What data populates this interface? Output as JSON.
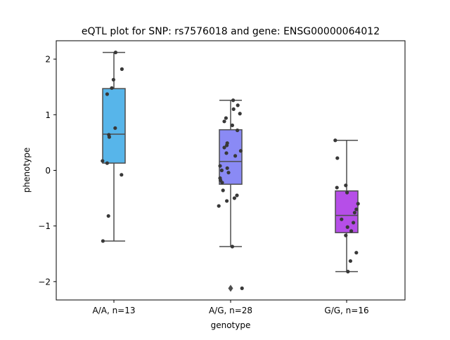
{
  "chart_data": {
    "type": "box",
    "title": "eQTL plot for SNP: rs7576018 and gene: ENSG00000064012",
    "xlabel": "genotype",
    "ylabel": "phenotype",
    "ylim": [
      -2.33,
      2.33
    ],
    "yticks": [
      -2,
      -1,
      0,
      1,
      2
    ],
    "ytick_labels": [
      "−2",
      "−1",
      "0",
      "1",
      "2"
    ],
    "grid": false,
    "categories": [
      "A/A, n=13",
      "A/G, n=28",
      "G/G, n=16"
    ],
    "colors": [
      "#57b5ea",
      "#8a8af5",
      "#b64ee8"
    ],
    "boxes": [
      {
        "category": "A/A, n=13",
        "whisker_low": -1.27,
        "q1": 0.13,
        "median": 0.65,
        "q3": 1.47,
        "whisker_high": 2.12,
        "outliers": []
      },
      {
        "category": "A/G, n=28",
        "whisker_low": -1.37,
        "q1": -0.25,
        "median": 0.16,
        "q3": 0.73,
        "whisker_high": 1.26,
        "outliers": [
          -2.12
        ]
      },
      {
        "category": "G/G, n=16",
        "whisker_low": -1.82,
        "q1": -1.12,
        "median": -0.81,
        "q3": -0.37,
        "whisker_high": 0.54,
        "outliers": []
      }
    ],
    "points": [
      [
        {
          "dx": 0.04,
          "y": 2.12
        },
        {
          "dx": 0.19,
          "y": 1.82
        },
        {
          "dx": -0.01,
          "y": 1.63
        },
        {
          "dx": -0.05,
          "y": 1.48
        },
        {
          "dx": -0.16,
          "y": 1.37
        },
        {
          "dx": 0.03,
          "y": 0.76
        },
        {
          "dx": -0.12,
          "y": 0.64
        },
        {
          "dx": -0.11,
          "y": 0.6
        },
        {
          "dx": -0.27,
          "y": 0.17
        },
        {
          "dx": -0.16,
          "y": 0.13
        },
        {
          "dx": 0.18,
          "y": -0.08
        },
        {
          "dx": -0.13,
          "y": -0.82
        },
        {
          "dx": -0.26,
          "y": -1.27
        }
      ],
      [
        {
          "dx": 0.06,
          "y": 1.26
        },
        {
          "dx": 0.17,
          "y": 1.17
        },
        {
          "dx": 0.07,
          "y": 1.1
        },
        {
          "dx": 0.22,
          "y": 1.02
        },
        {
          "dx": -0.11,
          "y": 0.94
        },
        {
          "dx": -0.15,
          "y": 0.88
        },
        {
          "dx": 0.04,
          "y": 0.81
        },
        {
          "dx": 0.16,
          "y": 0.72
        },
        {
          "dx": -0.08,
          "y": 0.49
        },
        {
          "dx": -0.09,
          "y": 0.45
        },
        {
          "dx": -0.15,
          "y": 0.41
        },
        {
          "dx": 0.24,
          "y": 0.35
        },
        {
          "dx": -0.1,
          "y": 0.31
        },
        {
          "dx": 0.11,
          "y": 0.26
        },
        {
          "dx": -0.25,
          "y": 0.08
        },
        {
          "dx": -0.08,
          "y": 0.04
        },
        {
          "dx": -0.21,
          "y": 0.0
        },
        {
          "dx": -0.05,
          "y": -0.04
        },
        {
          "dx": -0.25,
          "y": -0.14
        },
        {
          "dx": -0.24,
          "y": -0.18
        },
        {
          "dx": -0.2,
          "y": -0.22
        },
        {
          "dx": -0.18,
          "y": -0.36
        },
        {
          "dx": 0.15,
          "y": -0.45
        },
        {
          "dx": 0.09,
          "y": -0.5
        },
        {
          "dx": -0.09,
          "y": -0.55
        },
        {
          "dx": -0.28,
          "y": -0.64
        },
        {
          "dx": 0.04,
          "y": -1.37
        },
        {
          "dx": 0.27,
          "y": -2.12
        }
      ],
      [
        {
          "dx": -0.27,
          "y": 0.54
        },
        {
          "dx": -0.22,
          "y": 0.22
        },
        {
          "dx": -0.02,
          "y": -0.27
        },
        {
          "dx": -0.23,
          "y": -0.31
        },
        {
          "dx": 0.01,
          "y": -0.4
        },
        {
          "dx": 0.27,
          "y": -0.6
        },
        {
          "dx": 0.23,
          "y": -0.7
        },
        {
          "dx": 0.19,
          "y": -0.76
        },
        {
          "dx": -0.12,
          "y": -0.88
        },
        {
          "dx": 0.16,
          "y": -0.94
        },
        {
          "dx": 0.02,
          "y": -1.02
        },
        {
          "dx": 0.11,
          "y": -1.09
        },
        {
          "dx": -0.02,
          "y": -1.17
        },
        {
          "dx": 0.23,
          "y": -1.48
        },
        {
          "dx": 0.09,
          "y": -1.63
        },
        {
          "dx": 0.03,
          "y": -1.82
        }
      ]
    ]
  }
}
